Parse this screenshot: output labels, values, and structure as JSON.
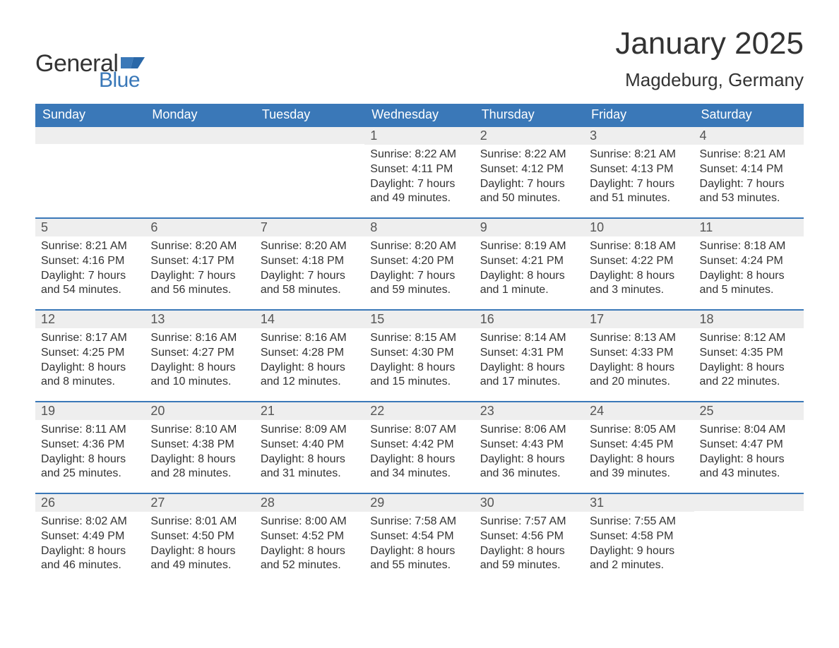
{
  "logo": {
    "text1": "General",
    "text2": "Blue",
    "icon_color": "#3a78b8"
  },
  "title": "January 2025",
  "subtitle": "Magdeburg, Germany",
  "colors": {
    "header_bg": "#3a78b8",
    "header_text": "#ffffff",
    "daynum_bg": "#eeeeee",
    "row_border": "#3a78b8",
    "text": "#333333"
  },
  "day_headers": [
    "Sunday",
    "Monday",
    "Tuesday",
    "Wednesday",
    "Thursday",
    "Friday",
    "Saturday"
  ],
  "weeks": [
    [
      null,
      null,
      null,
      {
        "num": "1",
        "sunrise": "Sunrise: 8:22 AM",
        "sunset": "Sunset: 4:11 PM",
        "daylight1": "Daylight: 7 hours",
        "daylight2": "and 49 minutes."
      },
      {
        "num": "2",
        "sunrise": "Sunrise: 8:22 AM",
        "sunset": "Sunset: 4:12 PM",
        "daylight1": "Daylight: 7 hours",
        "daylight2": "and 50 minutes."
      },
      {
        "num": "3",
        "sunrise": "Sunrise: 8:21 AM",
        "sunset": "Sunset: 4:13 PM",
        "daylight1": "Daylight: 7 hours",
        "daylight2": "and 51 minutes."
      },
      {
        "num": "4",
        "sunrise": "Sunrise: 8:21 AM",
        "sunset": "Sunset: 4:14 PM",
        "daylight1": "Daylight: 7 hours",
        "daylight2": "and 53 minutes."
      }
    ],
    [
      {
        "num": "5",
        "sunrise": "Sunrise: 8:21 AM",
        "sunset": "Sunset: 4:16 PM",
        "daylight1": "Daylight: 7 hours",
        "daylight2": "and 54 minutes."
      },
      {
        "num": "6",
        "sunrise": "Sunrise: 8:20 AM",
        "sunset": "Sunset: 4:17 PM",
        "daylight1": "Daylight: 7 hours",
        "daylight2": "and 56 minutes."
      },
      {
        "num": "7",
        "sunrise": "Sunrise: 8:20 AM",
        "sunset": "Sunset: 4:18 PM",
        "daylight1": "Daylight: 7 hours",
        "daylight2": "and 58 minutes."
      },
      {
        "num": "8",
        "sunrise": "Sunrise: 8:20 AM",
        "sunset": "Sunset: 4:20 PM",
        "daylight1": "Daylight: 7 hours",
        "daylight2": "and 59 minutes."
      },
      {
        "num": "9",
        "sunrise": "Sunrise: 8:19 AM",
        "sunset": "Sunset: 4:21 PM",
        "daylight1": "Daylight: 8 hours",
        "daylight2": "and 1 minute."
      },
      {
        "num": "10",
        "sunrise": "Sunrise: 8:18 AM",
        "sunset": "Sunset: 4:22 PM",
        "daylight1": "Daylight: 8 hours",
        "daylight2": "and 3 minutes."
      },
      {
        "num": "11",
        "sunrise": "Sunrise: 8:18 AM",
        "sunset": "Sunset: 4:24 PM",
        "daylight1": "Daylight: 8 hours",
        "daylight2": "and 5 minutes."
      }
    ],
    [
      {
        "num": "12",
        "sunrise": "Sunrise: 8:17 AM",
        "sunset": "Sunset: 4:25 PM",
        "daylight1": "Daylight: 8 hours",
        "daylight2": "and 8 minutes."
      },
      {
        "num": "13",
        "sunrise": "Sunrise: 8:16 AM",
        "sunset": "Sunset: 4:27 PM",
        "daylight1": "Daylight: 8 hours",
        "daylight2": "and 10 minutes."
      },
      {
        "num": "14",
        "sunrise": "Sunrise: 8:16 AM",
        "sunset": "Sunset: 4:28 PM",
        "daylight1": "Daylight: 8 hours",
        "daylight2": "and 12 minutes."
      },
      {
        "num": "15",
        "sunrise": "Sunrise: 8:15 AM",
        "sunset": "Sunset: 4:30 PM",
        "daylight1": "Daylight: 8 hours",
        "daylight2": "and 15 minutes."
      },
      {
        "num": "16",
        "sunrise": "Sunrise: 8:14 AM",
        "sunset": "Sunset: 4:31 PM",
        "daylight1": "Daylight: 8 hours",
        "daylight2": "and 17 minutes."
      },
      {
        "num": "17",
        "sunrise": "Sunrise: 8:13 AM",
        "sunset": "Sunset: 4:33 PM",
        "daylight1": "Daylight: 8 hours",
        "daylight2": "and 20 minutes."
      },
      {
        "num": "18",
        "sunrise": "Sunrise: 8:12 AM",
        "sunset": "Sunset: 4:35 PM",
        "daylight1": "Daylight: 8 hours",
        "daylight2": "and 22 minutes."
      }
    ],
    [
      {
        "num": "19",
        "sunrise": "Sunrise: 8:11 AM",
        "sunset": "Sunset: 4:36 PM",
        "daylight1": "Daylight: 8 hours",
        "daylight2": "and 25 minutes."
      },
      {
        "num": "20",
        "sunrise": "Sunrise: 8:10 AM",
        "sunset": "Sunset: 4:38 PM",
        "daylight1": "Daylight: 8 hours",
        "daylight2": "and 28 minutes."
      },
      {
        "num": "21",
        "sunrise": "Sunrise: 8:09 AM",
        "sunset": "Sunset: 4:40 PM",
        "daylight1": "Daylight: 8 hours",
        "daylight2": "and 31 minutes."
      },
      {
        "num": "22",
        "sunrise": "Sunrise: 8:07 AM",
        "sunset": "Sunset: 4:42 PM",
        "daylight1": "Daylight: 8 hours",
        "daylight2": "and 34 minutes."
      },
      {
        "num": "23",
        "sunrise": "Sunrise: 8:06 AM",
        "sunset": "Sunset: 4:43 PM",
        "daylight1": "Daylight: 8 hours",
        "daylight2": "and 36 minutes."
      },
      {
        "num": "24",
        "sunrise": "Sunrise: 8:05 AM",
        "sunset": "Sunset: 4:45 PM",
        "daylight1": "Daylight: 8 hours",
        "daylight2": "and 39 minutes."
      },
      {
        "num": "25",
        "sunrise": "Sunrise: 8:04 AM",
        "sunset": "Sunset: 4:47 PM",
        "daylight1": "Daylight: 8 hours",
        "daylight2": "and 43 minutes."
      }
    ],
    [
      {
        "num": "26",
        "sunrise": "Sunrise: 8:02 AM",
        "sunset": "Sunset: 4:49 PM",
        "daylight1": "Daylight: 8 hours",
        "daylight2": "and 46 minutes."
      },
      {
        "num": "27",
        "sunrise": "Sunrise: 8:01 AM",
        "sunset": "Sunset: 4:50 PM",
        "daylight1": "Daylight: 8 hours",
        "daylight2": "and 49 minutes."
      },
      {
        "num": "28",
        "sunrise": "Sunrise: 8:00 AM",
        "sunset": "Sunset: 4:52 PM",
        "daylight1": "Daylight: 8 hours",
        "daylight2": "and 52 minutes."
      },
      {
        "num": "29",
        "sunrise": "Sunrise: 7:58 AM",
        "sunset": "Sunset: 4:54 PM",
        "daylight1": "Daylight: 8 hours",
        "daylight2": "and 55 minutes."
      },
      {
        "num": "30",
        "sunrise": "Sunrise: 7:57 AM",
        "sunset": "Sunset: 4:56 PM",
        "daylight1": "Daylight: 8 hours",
        "daylight2": "and 59 minutes."
      },
      {
        "num": "31",
        "sunrise": "Sunrise: 7:55 AM",
        "sunset": "Sunset: 4:58 PM",
        "daylight1": "Daylight: 9 hours",
        "daylight2": "and 2 minutes."
      },
      null
    ]
  ]
}
